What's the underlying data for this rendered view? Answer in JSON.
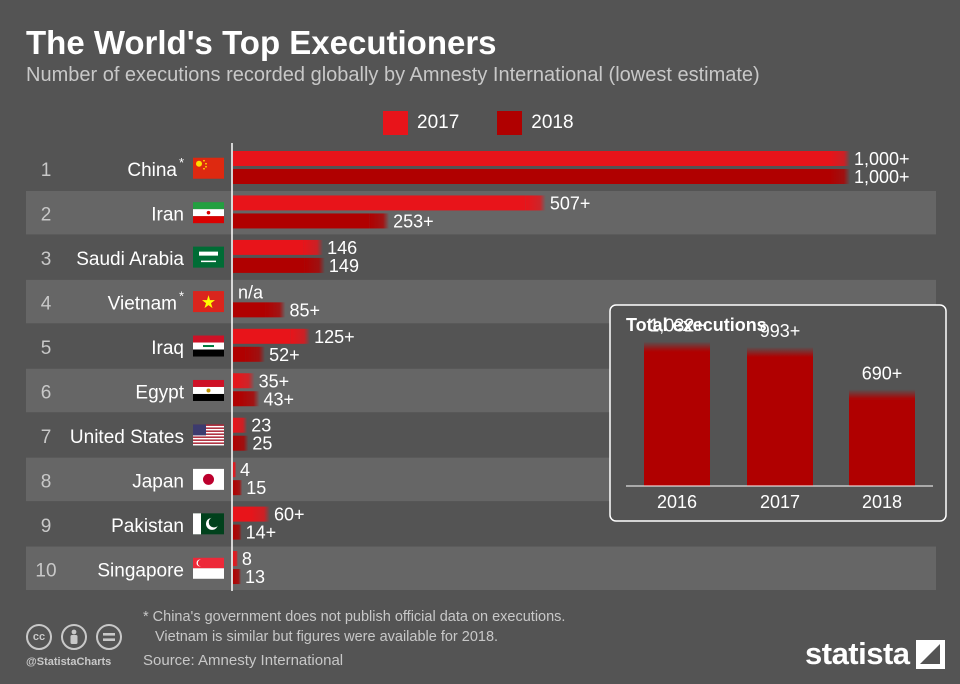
{
  "title": "The World's Top Executioners",
  "subtitle": "Number of executions recorded globally by Amnesty International (lowest estimate)",
  "legend": {
    "s2017": "2017",
    "s2018": "2018"
  },
  "colors": {
    "c2017": "#e8141a",
    "c2018": "#b00000",
    "band": "#666666",
    "background": "#545454"
  },
  "chart_data": [
    {
      "type": "bar",
      "orientation": "horizontal",
      "ranks": [
        "1",
        "2",
        "3",
        "4",
        "5",
        "6",
        "7",
        "8",
        "9",
        "10"
      ],
      "categories": [
        "China",
        "Iran",
        "Saudi Arabia",
        "Vietnam",
        "Iraq",
        "Egypt",
        "United States",
        "Japan",
        "Pakistan",
        "Singapore"
      ],
      "asterisk": [
        true,
        false,
        false,
        true,
        false,
        false,
        false,
        false,
        false,
        false
      ],
      "flags": [
        "china-flag-icon",
        "iran-flag-icon",
        "saudi-arabia-flag-icon",
        "vietnam-flag-icon",
        "iraq-flag-icon",
        "egypt-flag-icon",
        "united-states-flag-icon",
        "japan-flag-icon",
        "pakistan-flag-icon",
        "singapore-flag-icon"
      ],
      "series": [
        {
          "name": "2017",
          "values": [
            1000,
            507,
            146,
            null,
            125,
            35,
            23,
            4,
            60,
            8
          ],
          "labels": [
            "1,000+",
            "507+",
            "146",
            "n/a",
            "125+",
            "35+",
            "23",
            "4",
            "60+",
            "8"
          ]
        },
        {
          "name": "2018",
          "values": [
            1000,
            253,
            149,
            85,
            52,
            43,
            25,
            15,
            14,
            13
          ],
          "labels": [
            "1,000+",
            "253+",
            "149",
            "85+",
            "52+",
            "43+",
            "25",
            "15",
            "14+",
            "13"
          ]
        }
      ],
      "xlim": [
        0,
        1000
      ]
    },
    {
      "type": "bar",
      "title": "Total executions",
      "categories": [
        "2016",
        "2017",
        "2018"
      ],
      "values": [
        1032,
        993,
        690
      ],
      "labels": [
        "1,032+",
        "993+",
        "690+"
      ],
      "ylim": [
        0,
        1250
      ]
    }
  ],
  "footnote": {
    "line1": "* China's government does not publish official data on executions.",
    "line2": "Vietnam is similar but figures were available for 2018."
  },
  "source": "Source: Amnesty International",
  "handle": "@StatistaCharts",
  "brand": "statista",
  "license_icons": [
    "cc-icon",
    "by-icon",
    "nd-icon"
  ]
}
